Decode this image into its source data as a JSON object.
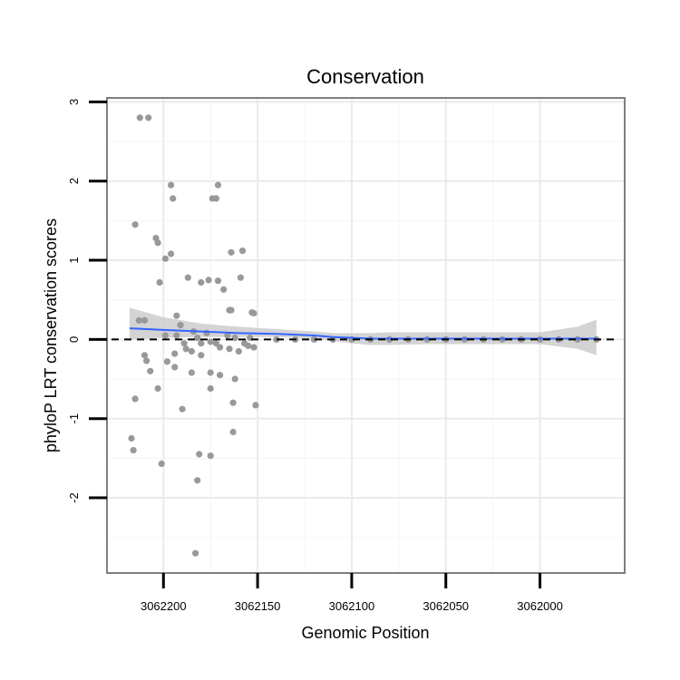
{
  "chart_data": {
    "type": "scatter",
    "title": "Conservation",
    "xlabel": "Genomic Position",
    "ylabel": "phyloP LRT conservation scores",
    "x_reversed": true,
    "xlim": [
      3062230,
      3061955
    ],
    "ylim": [
      -2.95,
      3.05
    ],
    "x_ticks": [
      3062200,
      3062150,
      3062100,
      3062050,
      3062000
    ],
    "x_tick_labels": [
      "3062200",
      "3062150",
      "3062100",
      "3062050",
      "3062000"
    ],
    "y_ticks": [
      3,
      2,
      1,
      0,
      -1,
      -2
    ],
    "y_tick_labels": [
      "3",
      "2",
      "1",
      "0",
      "-1",
      "-2"
    ],
    "grid": true,
    "reference_line": {
      "y": 0,
      "style": "dashed"
    },
    "colors": {
      "points": "#999999",
      "smooth": "#3366ff",
      "band": "#cccccc",
      "border": "#7f7f7f",
      "grid": "#ebebeb"
    },
    "points": [
      {
        "x": 3062212.5,
        "y": 2.8
      },
      {
        "x": 3062208,
        "y": 2.8
      },
      {
        "x": 3062196,
        "y": 1.95
      },
      {
        "x": 3062171,
        "y": 1.95
      },
      {
        "x": 3062195,
        "y": 1.78
      },
      {
        "x": 3062172,
        "y": 1.78
      },
      {
        "x": 3062174,
        "y": 1.78
      },
      {
        "x": 3062215,
        "y": 1.45
      },
      {
        "x": 3062204,
        "y": 1.28
      },
      {
        "x": 3062203,
        "y": 1.22
      },
      {
        "x": 3062199,
        "y": 1.02
      },
      {
        "x": 3062196,
        "y": 1.08
      },
      {
        "x": 3062164,
        "y": 1.1
      },
      {
        "x": 3062158,
        "y": 1.12
      },
      {
        "x": 3062202,
        "y": 0.72
      },
      {
        "x": 3062187,
        "y": 0.78
      },
      {
        "x": 3062176,
        "y": 0.75
      },
      {
        "x": 3062180,
        "y": 0.72
      },
      {
        "x": 3062171,
        "y": 0.74
      },
      {
        "x": 3062159,
        "y": 0.78
      },
      {
        "x": 3062168,
        "y": 0.63
      },
      {
        "x": 3062165,
        "y": 0.37
      },
      {
        "x": 3062164,
        "y": 0.37
      },
      {
        "x": 3062153,
        "y": 0.34
      },
      {
        "x": 3062152,
        "y": 0.33
      },
      {
        "x": 3062193,
        "y": 0.3
      },
      {
        "x": 3062213,
        "y": 0.24
      },
      {
        "x": 3062210,
        "y": 0.24
      },
      {
        "x": 3062191,
        "y": 0.18
      },
      {
        "x": 3062184,
        "y": 0.1
      },
      {
        "x": 3062177,
        "y": 0.08
      },
      {
        "x": 3062166,
        "y": 0.05
      },
      {
        "x": 3062193,
        "y": 0.05
      },
      {
        "x": 3062199,
        "y": 0.05
      },
      {
        "x": 3062182,
        "y": 0.02
      },
      {
        "x": 3062162,
        "y": 0.02
      },
      {
        "x": 3062154,
        "y": 0.02
      },
      {
        "x": 3062189,
        "y": -0.05
      },
      {
        "x": 3062180,
        "y": -0.05
      },
      {
        "x": 3062175,
        "y": -0.03
      },
      {
        "x": 3062172,
        "y": -0.05
      },
      {
        "x": 3062157,
        "y": -0.05
      },
      {
        "x": 3062155,
        "y": -0.08
      },
      {
        "x": 3062188,
        "y": -0.12
      },
      {
        "x": 3062185,
        "y": -0.15
      },
      {
        "x": 3062165,
        "y": -0.12
      },
      {
        "x": 3062160,
        "y": -0.15
      },
      {
        "x": 3062170,
        "y": -0.1
      },
      {
        "x": 3062152,
        "y": -0.1
      },
      {
        "x": 3062194,
        "y": -0.18
      },
      {
        "x": 3062180,
        "y": -0.2
      },
      {
        "x": 3062210,
        "y": -0.2
      },
      {
        "x": 3062209,
        "y": -0.27
      },
      {
        "x": 3062198,
        "y": -0.28
      },
      {
        "x": 3062194,
        "y": -0.35
      },
      {
        "x": 3062207,
        "y": -0.4
      },
      {
        "x": 3062185,
        "y": -0.42
      },
      {
        "x": 3062175,
        "y": -0.42
      },
      {
        "x": 3062170,
        "y": -0.45
      },
      {
        "x": 3062162,
        "y": -0.5
      },
      {
        "x": 3062203,
        "y": -0.62
      },
      {
        "x": 3062175,
        "y": -0.62
      },
      {
        "x": 3062215,
        "y": -0.75
      },
      {
        "x": 3062163,
        "y": -0.8
      },
      {
        "x": 3062151,
        "y": -0.83
      },
      {
        "x": 3062190,
        "y": -0.88
      },
      {
        "x": 3062217,
        "y": -1.25
      },
      {
        "x": 3062163,
        "y": -1.17
      },
      {
        "x": 3062216,
        "y": -1.4
      },
      {
        "x": 3062181,
        "y": -1.45
      },
      {
        "x": 3062175,
        "y": -1.47
      },
      {
        "x": 3062201,
        "y": -1.57
      },
      {
        "x": 3062182,
        "y": -1.78
      },
      {
        "x": 3062183,
        "y": -2.7
      },
      {
        "x": 3062140,
        "y": 0.0
      },
      {
        "x": 3062130,
        "y": 0.0
      },
      {
        "x": 3062120,
        "y": 0.0
      },
      {
        "x": 3062110,
        "y": 0.0
      },
      {
        "x": 3062100,
        "y": 0.0
      },
      {
        "x": 3062090,
        "y": 0.0
      },
      {
        "x": 3062080,
        "y": 0.0
      },
      {
        "x": 3062070,
        "y": 0.0
      },
      {
        "x": 3062060,
        "y": 0.0
      },
      {
        "x": 3062050,
        "y": 0.0
      },
      {
        "x": 3062040,
        "y": 0.0
      },
      {
        "x": 3062030,
        "y": 0.0
      },
      {
        "x": 3062020,
        "y": 0.0
      },
      {
        "x": 3062010,
        "y": 0.0
      },
      {
        "x": 3062000,
        "y": 0.0
      },
      {
        "x": 3061990,
        "y": 0.0
      },
      {
        "x": 3061980,
        "y": 0.0
      },
      {
        "x": 3061970,
        "y": 0.0
      }
    ],
    "smooth_line": {
      "x": [
        3062218,
        3062200,
        3062180,
        3062160,
        3062140,
        3062120,
        3062110,
        3062100,
        3062090,
        3062080,
        3062060,
        3062040,
        3062020,
        3062000,
        3061980,
        3061970
      ],
      "y": [
        0.14,
        0.12,
        0.1,
        0.08,
        0.07,
        0.05,
        0.03,
        0.02,
        0.01,
        0.01,
        0.01,
        0.01,
        0.01,
        0.01,
        0.01,
        0.01
      ],
      "lower": [
        0.0,
        0.02,
        0.03,
        0.03,
        0.03,
        0.01,
        -0.02,
        -0.05,
        -0.07,
        -0.07,
        -0.06,
        -0.06,
        -0.06,
        -0.06,
        -0.12,
        -0.2
      ],
      "upper": [
        0.4,
        0.28,
        0.2,
        0.16,
        0.13,
        0.1,
        0.08,
        0.08,
        0.08,
        0.09,
        0.09,
        0.09,
        0.09,
        0.09,
        0.16,
        0.25
      ]
    }
  }
}
